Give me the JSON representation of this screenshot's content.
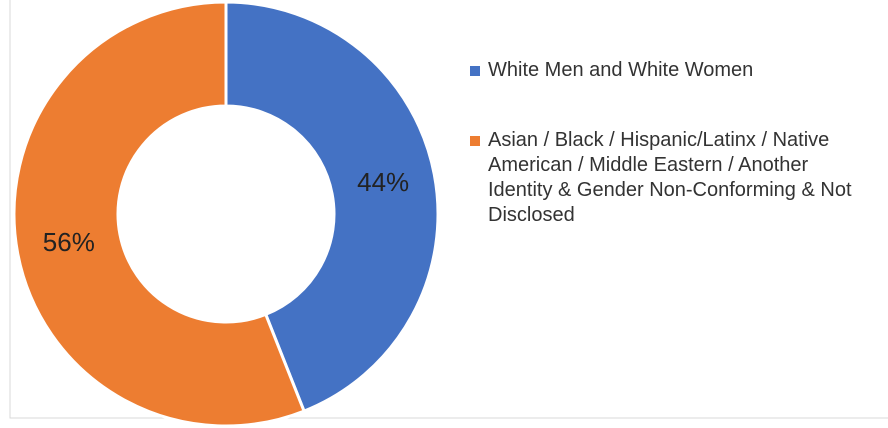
{
  "chart_data": {
    "type": "donut",
    "categories": [
      "White Men and White Women",
      "Asian / Black / Hispanic/Latinx / Native American / Middle Eastern / Another Identity & Gender Non-Conforming & Not Disclosed"
    ],
    "values": [
      44,
      56
    ],
    "value_labels": [
      "44%",
      "56%"
    ],
    "colors": [
      "#4472c4",
      "#ed7d31"
    ],
    "legend": "right"
  }
}
